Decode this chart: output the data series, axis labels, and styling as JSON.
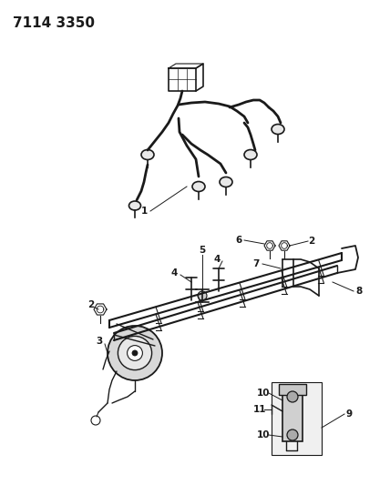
{
  "title": "7114 3350",
  "bg_color": "#ffffff",
  "line_color": "#1a1a1a",
  "title_fontsize": 11,
  "label_fontsize": 7.5,
  "fig_width": 4.28,
  "fig_height": 5.33,
  "dpi": 100
}
